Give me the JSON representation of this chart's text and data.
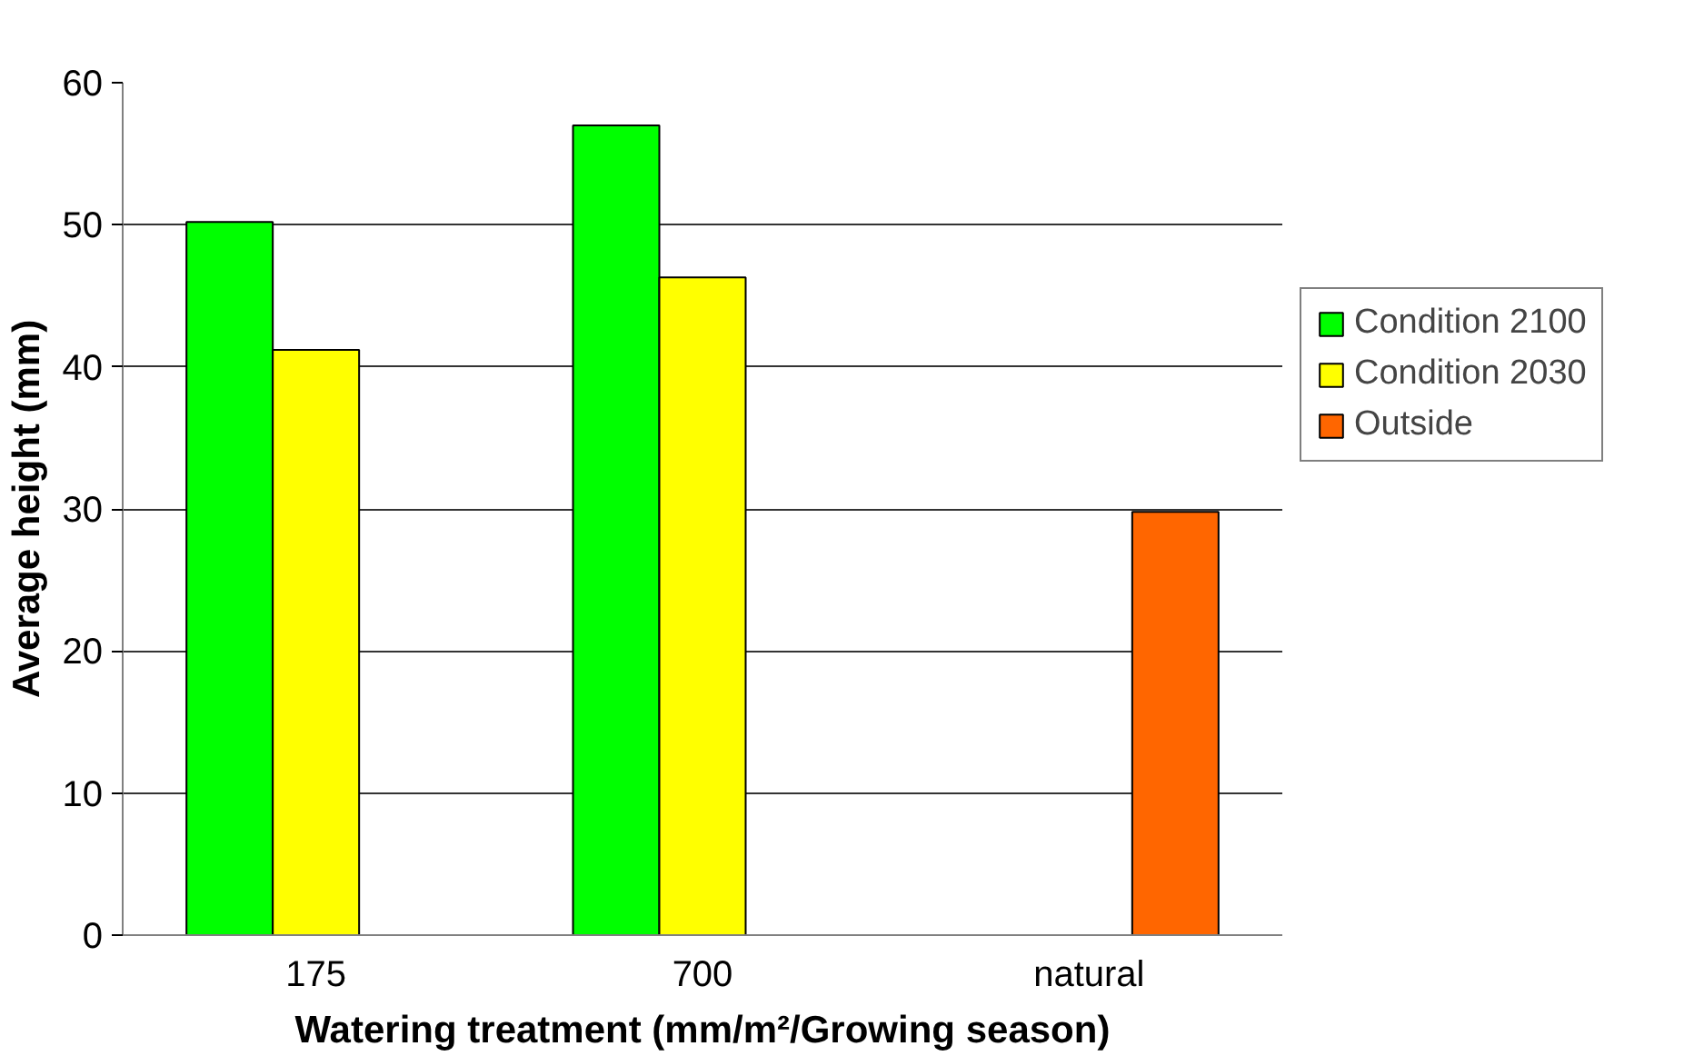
{
  "chart_data": {
    "type": "bar",
    "xlabel": "Watering treatment (mm/m²/Growing season)",
    "ylabel": "Average height (mm)",
    "categories": [
      "175",
      "700",
      "natural"
    ],
    "series": [
      {
        "name": "Condition 2100",
        "color": "#00ff00",
        "values": [
          50.2,
          57.0,
          null
        ]
      },
      {
        "name": "Condition 2030",
        "color": "#ffff00",
        "values": [
          41.2,
          46.3,
          null
        ]
      },
      {
        "name": "Outside",
        "color": "#ff6600",
        "values": [
          null,
          null,
          29.8
        ]
      }
    ],
    "ylim": [
      0,
      60
    ],
    "yticks": [
      0,
      10,
      20,
      30,
      40,
      50,
      60
    ],
    "grid": "y",
    "legend": "right"
  }
}
